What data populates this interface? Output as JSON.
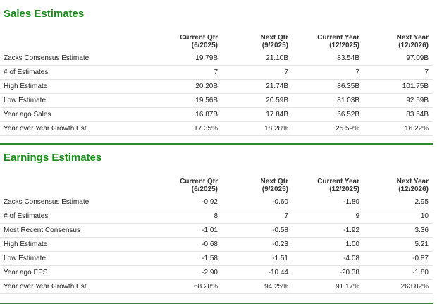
{
  "sales": {
    "title": "Sales Estimates",
    "columns": [
      {
        "line1": "Current Qtr",
        "line2": "(6/2025)"
      },
      {
        "line1": "Next Qtr",
        "line2": "(9/2025)"
      },
      {
        "line1": "Current Year",
        "line2": "(12/2025)"
      },
      {
        "line1": "Next Year",
        "line2": "(12/2026)"
      }
    ],
    "rows": [
      {
        "label": "Zacks Consensus Estimate",
        "values": [
          "19.79B",
          "21.10B",
          "83.54B",
          "97.09B"
        ]
      },
      {
        "label": "# of Estimates",
        "values": [
          "7",
          "7",
          "7",
          "7"
        ]
      },
      {
        "label": "High Estimate",
        "values": [
          "20.20B",
          "21.74B",
          "86.35B",
          "101.75B"
        ]
      },
      {
        "label": "Low Estimate",
        "values": [
          "19.56B",
          "20.59B",
          "81.03B",
          "92.59B"
        ]
      },
      {
        "label": "Year ago Sales",
        "values": [
          "16.87B",
          "17.84B",
          "66.52B",
          "83.54B"
        ]
      },
      {
        "label": "Year over Year Growth Est.",
        "values": [
          "17.35%",
          "18.28%",
          "25.59%",
          "16.22%"
        ]
      }
    ]
  },
  "earnings": {
    "title": "Earnings Estimates",
    "columns": [
      {
        "line1": "Current Qtr",
        "line2": "(6/2025)"
      },
      {
        "line1": "Next Qtr",
        "line2": "(9/2025)"
      },
      {
        "line1": "Current Year",
        "line2": "(12/2025)"
      },
      {
        "line1": "Next Year",
        "line2": "(12/2026)"
      }
    ],
    "rows": [
      {
        "label": "Zacks Consensus Estimate",
        "values": [
          "-0.92",
          "-0.60",
          "-1.80",
          "2.95"
        ]
      },
      {
        "label": "# of Estimates",
        "values": [
          "8",
          "7",
          "9",
          "10"
        ]
      },
      {
        "label": "Most Recent Consensus",
        "values": [
          "-1.01",
          "-0.58",
          "-1.92",
          "3.36"
        ]
      },
      {
        "label": "High Estimate",
        "values": [
          "-0.68",
          "-0.23",
          "1.00",
          "5.21"
        ]
      },
      {
        "label": "Low Estimate",
        "values": [
          "-1.58",
          "-1.51",
          "-4.08",
          "-0.87"
        ]
      },
      {
        "label": "Year ago EPS",
        "values": [
          "-2.90",
          "-10.44",
          "-20.38",
          "-1.80"
        ]
      },
      {
        "label": "Year over Year Growth Est.",
        "values": [
          "68.28%",
          "94.25%",
          "91.17%",
          "263.82%"
        ]
      }
    ]
  },
  "colors": {
    "title_green": "#1d8a1d",
    "rule_green": "#2e8b2e",
    "row_border": "#e4e4e4"
  }
}
